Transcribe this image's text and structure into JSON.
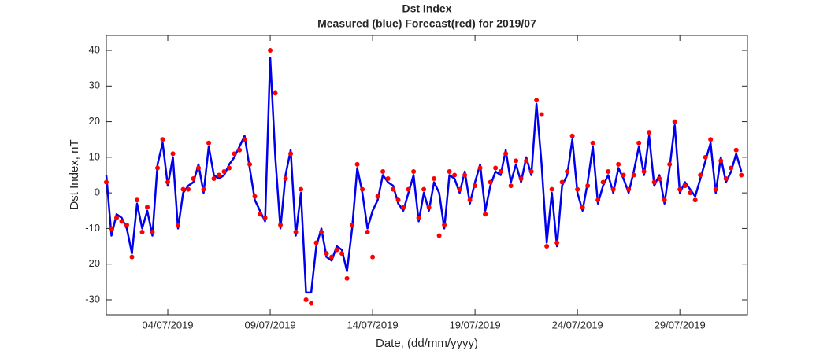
{
  "chart_data": {
    "type": "line",
    "title": "Dst Index",
    "subtitle": "Measured (blue) Forecast(red) for 2019/07",
    "x_label": "Date, (dd/mm/yyyy)",
    "y_label": "Dst Index, nT",
    "xlim": [
      1,
      32.3
    ],
    "ylim": [
      -34.2,
      44.2
    ],
    "yticks": [
      -30,
      -20,
      -10,
      0,
      10,
      20,
      30,
      40
    ],
    "xticks": [
      {
        "value": 4,
        "label": "04/07/2019"
      },
      {
        "value": 9,
        "label": "09/07/2019"
      },
      {
        "value": 14,
        "label": "14/07/2019"
      },
      {
        "value": 19,
        "label": "19/07/2019"
      },
      {
        "value": 24,
        "label": "24/07/2019"
      },
      {
        "value": 29,
        "label": "29/07/2019"
      }
    ],
    "x": [
      1,
      1.25,
      1.5,
      1.75,
      2,
      2.25,
      2.5,
      2.75,
      3,
      3.25,
      3.5,
      3.75,
      4,
      4.25,
      4.5,
      4.75,
      5,
      5.25,
      5.5,
      5.75,
      6,
      6.25,
      6.5,
      6.75,
      7,
      7.25,
      7.5,
      7.75,
      8,
      8.25,
      8.5,
      8.75,
      9,
      9.25,
      9.5,
      9.75,
      10,
      10.25,
      10.5,
      10.75,
      11,
      11.25,
      11.5,
      11.75,
      12,
      12.25,
      12.5,
      12.75,
      13,
      13.25,
      13.5,
      13.75,
      14,
      14.25,
      14.5,
      14.75,
      15,
      15.25,
      15.5,
      15.75,
      16,
      16.25,
      16.5,
      16.75,
      17,
      17.25,
      17.5,
      17.75,
      18,
      18.25,
      18.5,
      18.75,
      19,
      19.25,
      19.5,
      19.75,
      20,
      20.25,
      20.5,
      20.75,
      21,
      21.25,
      21.5,
      21.75,
      22,
      22.25,
      22.5,
      22.75,
      23,
      23.25,
      23.5,
      23.75,
      24,
      24.25,
      24.5,
      24.75,
      25,
      25.25,
      25.5,
      25.75,
      26,
      26.25,
      26.5,
      26.75,
      27,
      27.25,
      27.5,
      27.75,
      28,
      28.25,
      28.5,
      28.75,
      29,
      29.25,
      29.5,
      29.75,
      30,
      30.25,
      30.5,
      30.75,
      31,
      31.25,
      31.5,
      31.75,
      32
    ],
    "series": [
      {
        "type": "line",
        "color": "#0000ee",
        "values": [
          5,
          -12,
          -6,
          -7,
          -10,
          -17,
          -3,
          -10,
          -5,
          -12,
          8,
          14,
          2,
          10,
          -10,
          0,
          2,
          3,
          8,
          0,
          13,
          5,
          4,
          5,
          8,
          10,
          13,
          16,
          7,
          -2,
          -5,
          -8,
          38,
          10,
          -10,
          5,
          12,
          -12,
          0,
          -28,
          -28,
          -15,
          -10,
          -18,
          -19,
          -15,
          -16,
          -22,
          -10,
          7,
          0,
          -10,
          -5,
          -2,
          5,
          3,
          2,
          -3,
          -5,
          0,
          5,
          -8,
          0,
          -5,
          3,
          0,
          -10,
          5,
          4,
          0,
          6,
          -3,
          3,
          8,
          -5,
          2,
          6,
          5,
          12,
          3,
          8,
          3,
          10,
          5,
          25,
          8,
          -14,
          0,
          -15,
          2,
          5,
          15,
          0,
          -5,
          3,
          13,
          -3,
          2,
          5,
          0,
          7,
          4,
          0,
          6,
          13,
          5,
          16,
          2,
          5,
          -3,
          7,
          19,
          0,
          3,
          1,
          -1,
          4,
          9,
          14,
          0,
          10,
          3,
          6,
          11,
          6
        ]
      },
      {
        "type": "scatter",
        "color": "#ff0000",
        "values": [
          3,
          -10,
          -7,
          -8,
          -9,
          -18,
          -2,
          -11,
          -4,
          -11,
          7,
          15,
          3,
          11,
          -9,
          1,
          1,
          4,
          7,
          1,
          14,
          4,
          5,
          6,
          7,
          11,
          12,
          15,
          8,
          -1,
          -6,
          -7,
          40,
          28,
          -9,
          4,
          11,
          -11,
          1,
          -30,
          -31,
          -14,
          -11,
          -17,
          -18,
          -16,
          -17,
          -24,
          -9,
          8,
          1,
          -11,
          -18,
          -1,
          6,
          4,
          1,
          -2,
          -4,
          1,
          6,
          -7,
          1,
          -4,
          4,
          -12,
          -9,
          6,
          5,
          1,
          5,
          -2,
          2,
          7,
          -6,
          3,
          7,
          6,
          11,
          2,
          9,
          4,
          9,
          6,
          26,
          22,
          -15,
          1,
          -14,
          3,
          6,
          16,
          1,
          -4,
          2,
          14,
          -2,
          3,
          6,
          1,
          8,
          5,
          1,
          5,
          14,
          6,
          17,
          3,
          4,
          -2,
          8,
          20,
          1,
          2,
          0,
          -2,
          5,
          10,
          15,
          1,
          9,
          4,
          7,
          12,
          5
        ]
      }
    ]
  }
}
